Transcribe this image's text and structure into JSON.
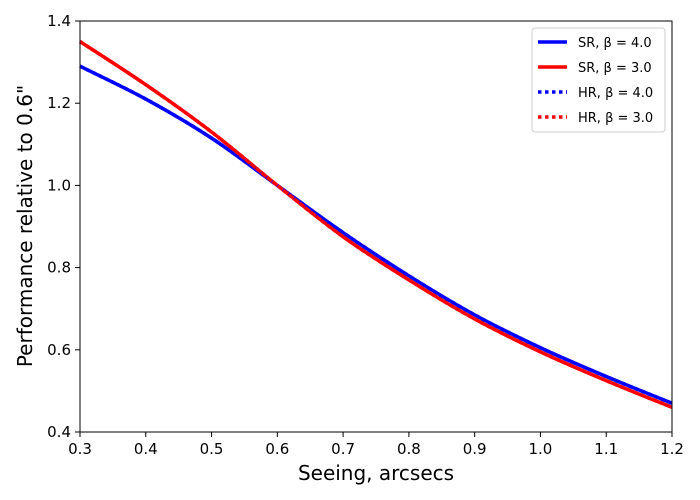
{
  "chart_data": {
    "type": "line",
    "xlabel": "Seeing, arcsecs",
    "ylabel": "Performance relative to 0.6\"",
    "xlim": [
      0.3,
      1.2
    ],
    "ylim": [
      0.4,
      1.4
    ],
    "xticks": [
      "0.3",
      "0.4",
      "0.5",
      "0.6",
      "0.7",
      "0.8",
      "0.9",
      "1.0",
      "1.1",
      "1.2"
    ],
    "yticks": [
      "0.4",
      "0.6",
      "0.8",
      "1.0",
      "1.2",
      "1.4"
    ],
    "grid": false,
    "legend_position": "top-right",
    "x": [
      0.3,
      0.4,
      0.5,
      0.6,
      0.7,
      0.8,
      0.9,
      1.0,
      1.1,
      1.2
    ],
    "series": [
      {
        "name": "SR, β =  4.0",
        "style": "solid",
        "color": "#0000ff",
        "values": [
          1.29,
          1.21,
          1.115,
          1.0,
          0.885,
          0.78,
          0.685,
          0.605,
          0.535,
          0.47
        ]
      },
      {
        "name": "SR, β =  3.0",
        "style": "solid",
        "color": "#ff0000",
        "values": [
          1.35,
          1.245,
          1.13,
          1.0,
          0.875,
          0.77,
          0.675,
          0.595,
          0.525,
          0.46
        ]
      },
      {
        "name": "HR, β =  4.0",
        "style": "dotted",
        "color": "#0000ff",
        "values": [
          1.29,
          1.21,
          1.115,
          1.0,
          0.885,
          0.78,
          0.685,
          0.605,
          0.535,
          0.47
        ]
      },
      {
        "name": "HR, β =  3.0",
        "style": "dotted",
        "color": "#ff0000",
        "values": [
          1.35,
          1.245,
          1.13,
          1.0,
          0.875,
          0.77,
          0.675,
          0.595,
          0.525,
          0.46
        ]
      }
    ]
  }
}
